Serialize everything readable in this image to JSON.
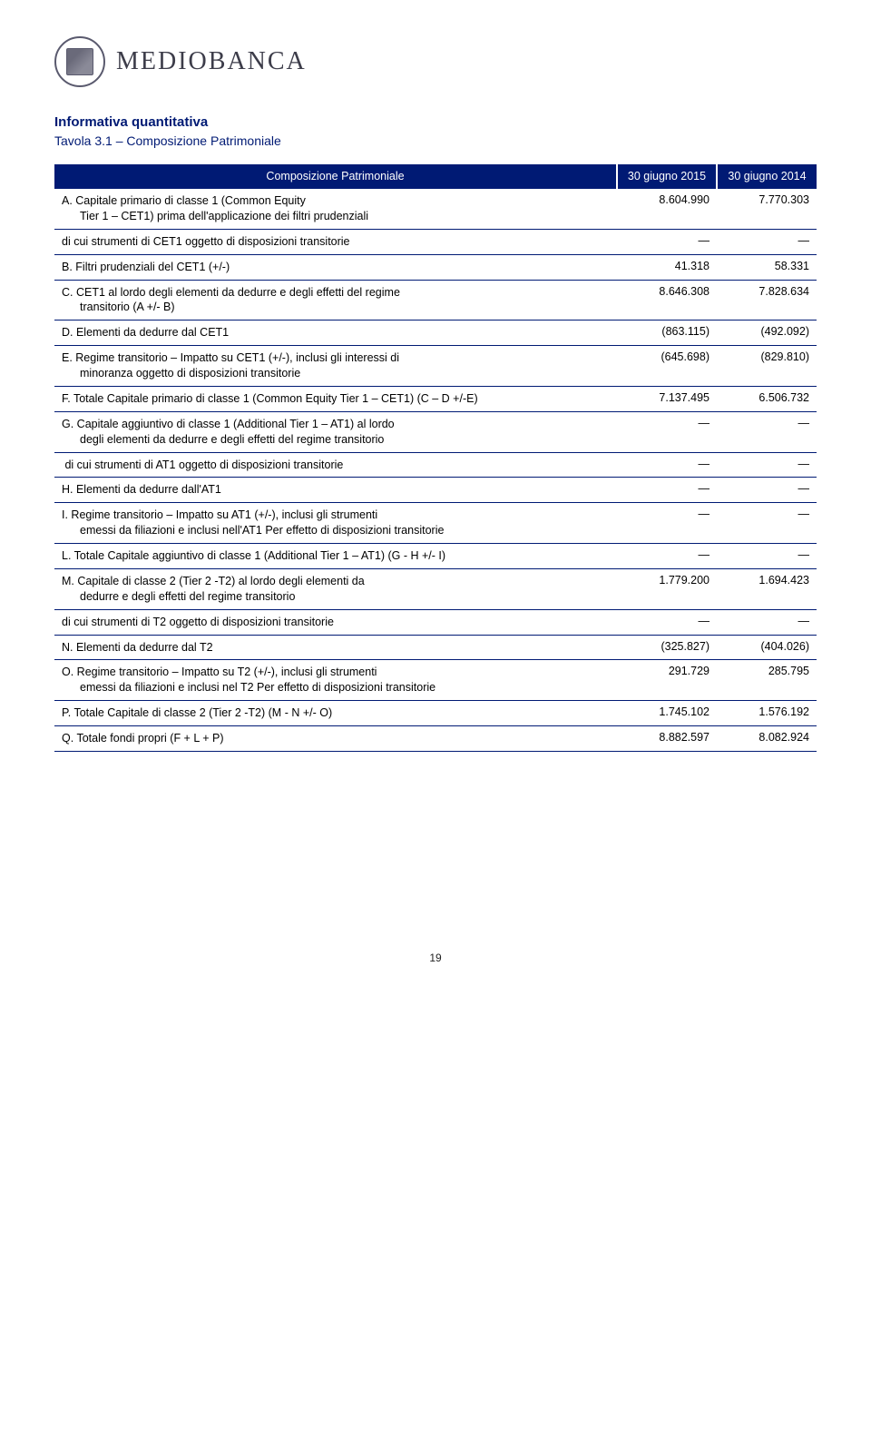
{
  "brand": {
    "wordmark": "MEDIOBANCA"
  },
  "headings": {
    "section": "Informativa quantitativa",
    "table_title": "Tavola 3.1 – Composizione Patrimoniale"
  },
  "table": {
    "header": {
      "label": "Composizione Patrimoniale",
      "col1": "30 giugno 2015",
      "col2": "30 giugno 2014"
    },
    "rows": [
      {
        "label": "A. Capitale primario di classe 1 (Common Equity",
        "indent": "Tier 1 – CET1) prima dell'applicazione dei filtri prudenziali",
        "v1": "8.604.990",
        "v2": "7.770.303"
      },
      {
        "label": "di cui strumenti di CET1 oggetto di disposizioni transitorie",
        "v1": "—",
        "v2": "—"
      },
      {
        "label": "B. Filtri prudenziali del CET1 (+/-)",
        "v1": "41.318",
        "v2": "58.331"
      },
      {
        "label": "C. CET1 al lordo degli elementi da dedurre e degli effetti del regime",
        "indent": "transitorio (A +/- B)",
        "v1": "8.646.308",
        "v2": "7.828.634"
      },
      {
        "label": "D. Elementi da dedurre dal CET1",
        "v1": "(863.115)",
        "v2": "(492.092)"
      },
      {
        "label": "E. Regime transitorio – Impatto su CET1 (+/-), inclusi gli interessi di",
        "indent": "minoranza oggetto di disposizioni transitorie",
        "v1": "(645.698)",
        "v2": "(829.810)"
      },
      {
        "label": "F. Totale Capitale primario di classe 1 (Common Equity Tier 1 – CET1) (C – D +/-E)",
        "v1": "7.137.495",
        "v2": "6.506.732"
      },
      {
        "label": "G. Capitale aggiuntivo di classe 1 (Additional Tier 1 – AT1) al lordo",
        "indent": "degli elementi da dedurre e degli effetti del regime transitorio",
        "v1": "—",
        "v2": "—"
      },
      {
        "label": " di cui strumenti di AT1 oggetto di disposizioni transitorie",
        "v1": "—",
        "v2": "—"
      },
      {
        "label": "H. Elementi da dedurre dall'AT1",
        "v1": "—",
        "v2": "—"
      },
      {
        "label": "I. Regime transitorio – Impatto su AT1 (+/-), inclusi gli strumenti",
        "indent": "emessi da filiazioni e inclusi nell'AT1 Per effetto di disposizioni transitorie",
        "v1": "—",
        "v2": "—"
      },
      {
        "label": "L. Totale Capitale aggiuntivo di classe 1 (Additional Tier 1 – AT1) (G - H +/- I)",
        "v1": "—",
        "v2": "—"
      },
      {
        "label": "M. Capitale di classe 2 (Tier 2 -T2) al lordo degli elementi da",
        "indent": "dedurre e degli effetti del regime transitorio",
        "v1": "1.779.200",
        "v2": "1.694.423"
      },
      {
        "label": "di cui strumenti di T2 oggetto di disposizioni transitorie",
        "v1": "—",
        "v2": "—"
      },
      {
        "label": "N. Elementi da dedurre dal T2",
        "v1": "(325.827)",
        "v2": "(404.026)"
      },
      {
        "label": "O. Regime transitorio – Impatto su T2 (+/-), inclusi gli strumenti",
        "indent": "emessi da filiazioni e inclusi nel T2 Per effetto di disposizioni transitorie",
        "v1": "291.729",
        "v2": "285.795"
      },
      {
        "label": "P. Totale Capitale di classe 2 (Tier 2 -T2) (M - N +/- O)",
        "v1": "1.745.102",
        "v2": "1.576.192"
      },
      {
        "label": "Q. Totale fondi propri (F + L + P)",
        "v1": "8.882.597",
        "v2": "8.082.924"
      }
    ]
  },
  "colors": {
    "brand_navy": "#001a74",
    "text": "#000000",
    "white": "#ffffff"
  },
  "page_number": "19"
}
